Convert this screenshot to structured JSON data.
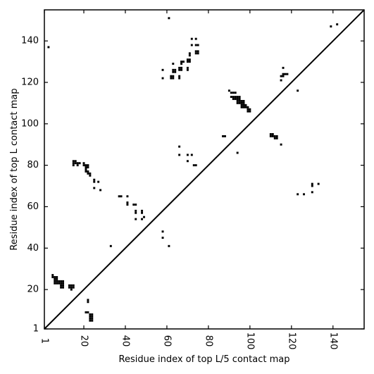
{
  "chart_data": {
    "type": "scatter",
    "xlabel": "Residue index of top L/5 contact map",
    "ylabel": "Residue index of top L contact map",
    "xlim": [
      1,
      155
    ],
    "ylim": [
      1,
      155
    ],
    "x_ticks": [
      1,
      20,
      40,
      60,
      80,
      100,
      120,
      140
    ],
    "y_ticks": [
      1,
      20,
      40,
      60,
      80,
      100,
      120,
      140
    ],
    "diagonal": true,
    "grid": false,
    "series": [
      {
        "marker": "square",
        "color": "#000000",
        "points": [
          [
            5,
            27
          ],
          [
            5,
            26
          ],
          [
            6,
            26
          ],
          [
            6,
            25
          ],
          [
            7,
            26
          ],
          [
            7,
            25
          ],
          [
            6,
            24
          ],
          [
            7,
            24
          ],
          [
            8,
            24
          ],
          [
            6,
            23
          ],
          [
            7,
            23
          ],
          [
            8,
            23
          ],
          [
            9,
            24
          ],
          [
            10,
            24
          ],
          [
            9,
            23
          ],
          [
            10,
            23
          ],
          [
            9,
            22
          ],
          [
            10,
            22
          ],
          [
            9,
            21
          ],
          [
            10,
            21
          ],
          [
            13,
            22
          ],
          [
            14,
            22
          ],
          [
            15,
            22
          ],
          [
            13,
            21
          ],
          [
            14,
            21
          ],
          [
            15,
            21
          ],
          [
            14,
            20
          ],
          [
            3,
            137
          ],
          [
            22,
            15
          ],
          [
            22,
            14
          ],
          [
            21,
            9
          ],
          [
            22,
            9
          ],
          [
            23,
            8
          ],
          [
            24,
            8
          ],
          [
            23,
            7
          ],
          [
            24,
            7
          ],
          [
            23,
            6
          ],
          [
            24,
            6
          ],
          [
            23,
            5
          ],
          [
            24,
            5
          ],
          [
            15,
            82
          ],
          [
            16,
            82
          ],
          [
            15,
            81
          ],
          [
            16,
            81
          ],
          [
            17,
            81
          ],
          [
            15,
            80
          ],
          [
            18,
            81
          ],
          [
            17,
            80
          ],
          [
            20,
            81
          ],
          [
            20,
            80
          ],
          [
            21,
            80
          ],
          [
            22,
            80
          ],
          [
            21,
            79
          ],
          [
            22,
            79
          ],
          [
            21,
            78
          ],
          [
            21,
            77
          ],
          [
            22,
            77
          ],
          [
            22,
            76
          ],
          [
            23,
            76
          ],
          [
            23,
            75
          ],
          [
            25,
            73
          ],
          [
            25,
            72
          ],
          [
            27,
            72
          ],
          [
            25,
            69
          ],
          [
            28,
            68
          ],
          [
            33,
            41
          ],
          [
            37,
            65
          ],
          [
            38,
            65
          ],
          [
            41,
            65
          ],
          [
            41,
            62
          ],
          [
            41,
            61
          ],
          [
            44,
            61
          ],
          [
            45,
            61
          ],
          [
            45,
            58
          ],
          [
            45,
            57
          ],
          [
            48,
            58
          ],
          [
            48,
            57
          ],
          [
            45,
            54
          ],
          [
            48,
            54
          ],
          [
            49,
            55
          ],
          [
            58,
            48
          ],
          [
            58,
            45
          ],
          [
            61,
            41
          ],
          [
            61,
            151
          ],
          [
            58,
            126
          ],
          [
            58,
            122
          ],
          [
            62,
            122
          ],
          [
            63,
            122
          ],
          [
            62,
            123
          ],
          [
            63,
            123
          ],
          [
            63,
            125
          ],
          [
            64,
            125
          ],
          [
            63,
            126
          ],
          [
            64,
            126
          ],
          [
            63,
            129
          ],
          [
            66,
            127
          ],
          [
            67,
            127
          ],
          [
            66,
            126
          ],
          [
            67,
            126
          ],
          [
            66,
            123
          ],
          [
            66,
            122
          ],
          [
            67,
            130
          ],
          [
            68,
            130
          ],
          [
            67,
            129
          ],
          [
            70,
            130
          ],
          [
            71,
            130
          ],
          [
            70,
            131
          ],
          [
            71,
            131
          ],
          [
            71,
            133
          ],
          [
            71,
            134
          ],
          [
            70,
            127
          ],
          [
            70,
            126
          ],
          [
            72,
            141
          ],
          [
            72,
            138
          ],
          [
            74,
            138
          ],
          [
            75,
            138
          ],
          [
            74,
            141
          ],
          [
            74,
            134
          ],
          [
            75,
            134
          ],
          [
            74,
            135
          ],
          [
            75,
            135
          ],
          [
            66,
            89
          ],
          [
            66,
            85
          ],
          [
            70,
            85
          ],
          [
            72,
            85
          ],
          [
            70,
            82
          ],
          [
            73,
            80
          ],
          [
            74,
            80
          ],
          [
            87,
            94
          ],
          [
            88,
            94
          ],
          [
            94,
            86
          ],
          [
            90,
            116
          ],
          [
            91,
            115
          ],
          [
            92,
            115
          ],
          [
            93,
            115
          ],
          [
            91,
            113
          ],
          [
            92,
            113
          ],
          [
            93,
            113
          ],
          [
            92,
            112
          ],
          [
            93,
            112
          ],
          [
            94,
            113
          ],
          [
            95,
            113
          ],
          [
            94,
            112
          ],
          [
            95,
            112
          ],
          [
            94,
            111
          ],
          [
            95,
            111
          ],
          [
            94,
            110
          ],
          [
            95,
            110
          ],
          [
            96,
            111
          ],
          [
            97,
            111
          ],
          [
            96,
            110
          ],
          [
            97,
            110
          ],
          [
            96,
            109
          ],
          [
            97,
            109
          ],
          [
            96,
            108
          ],
          [
            97,
            108
          ],
          [
            98,
            109
          ],
          [
            98,
            108
          ],
          [
            99,
            108
          ],
          [
            99,
            107
          ],
          [
            100,
            107
          ],
          [
            99,
            106
          ],
          [
            100,
            106
          ],
          [
            110,
            95
          ],
          [
            111,
            95
          ],
          [
            110,
            94
          ],
          [
            111,
            94
          ],
          [
            112,
            94
          ],
          [
            113,
            94
          ],
          [
            112,
            93
          ],
          [
            113,
            93
          ],
          [
            115,
            90
          ],
          [
            115,
            121
          ],
          [
            115,
            123
          ],
          [
            116,
            123
          ],
          [
            116,
            124
          ],
          [
            117,
            124
          ],
          [
            118,
            124
          ],
          [
            116,
            127
          ],
          [
            123,
            116
          ],
          [
            123,
            66
          ],
          [
            126,
            66
          ],
          [
            130,
            71
          ],
          [
            130,
            70
          ],
          [
            133,
            71
          ],
          [
            130,
            67
          ],
          [
            139,
            147
          ],
          [
            142,
            148
          ]
        ]
      }
    ]
  }
}
